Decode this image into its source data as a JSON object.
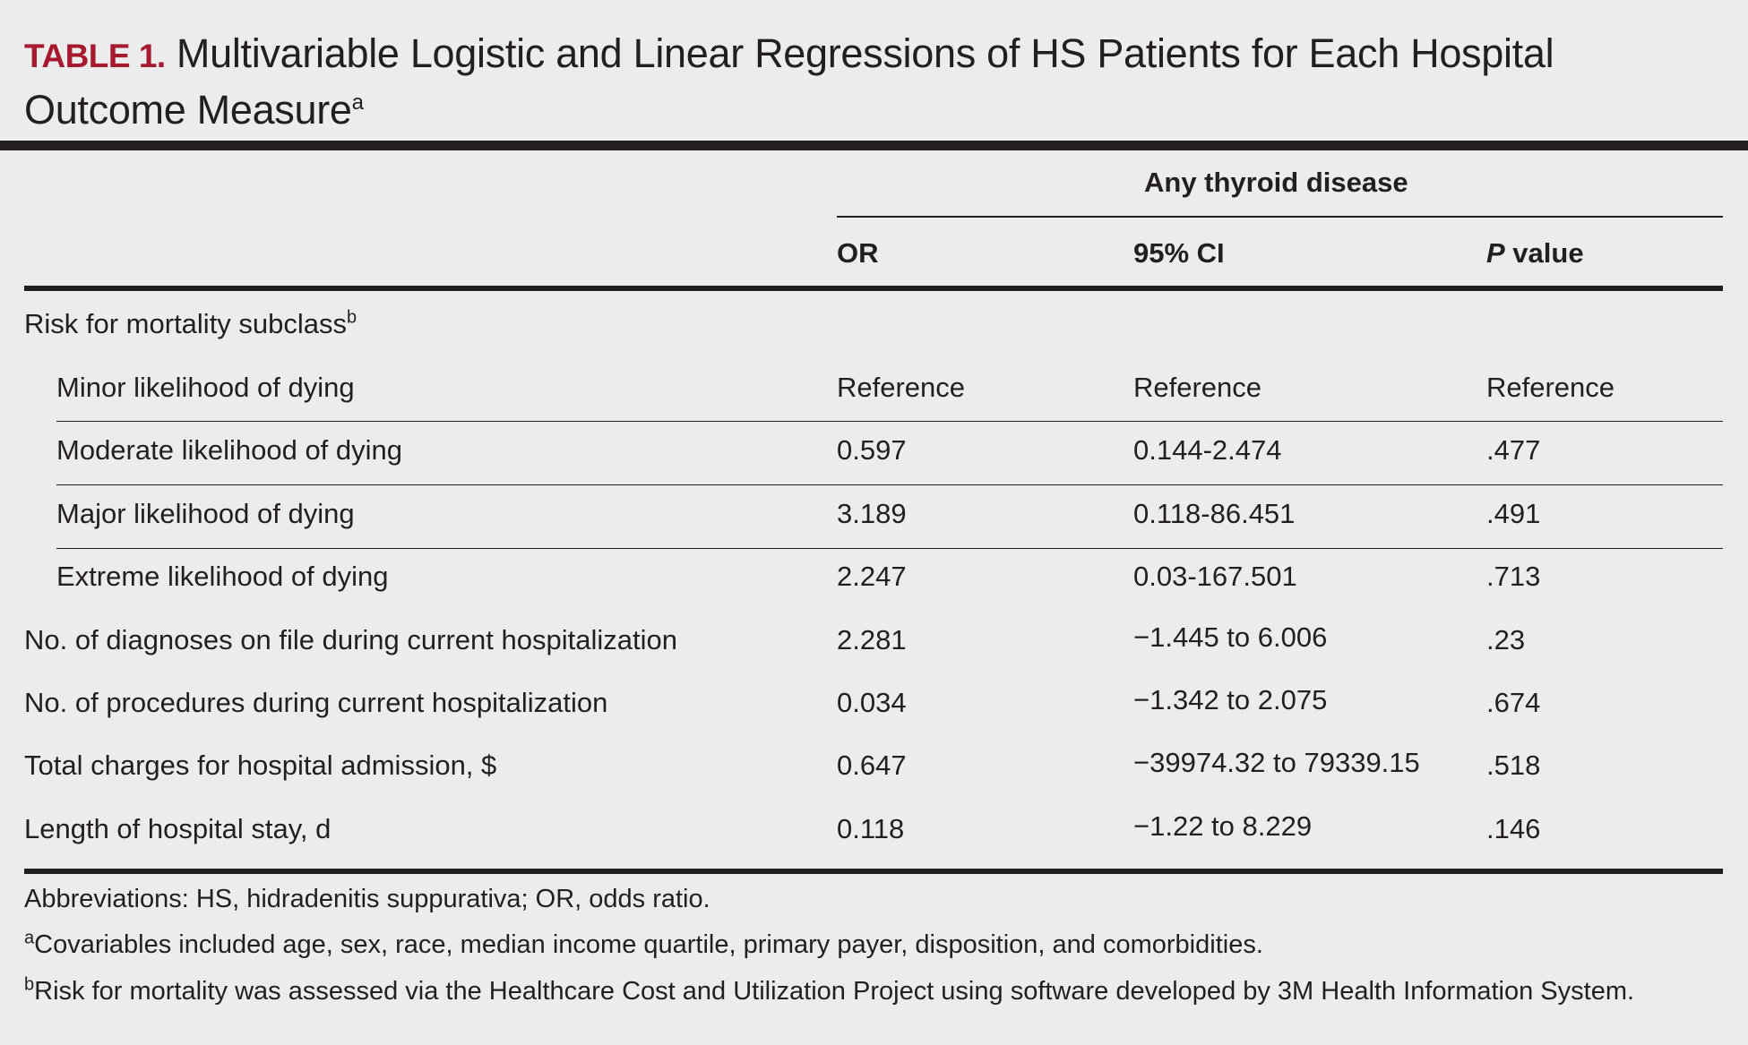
{
  "title": {
    "label": "TABLE 1.",
    "line1": "Multivariable Logistic and Linear Regressions of HS Patients for Each Hospital",
    "line2": "Outcome Measure",
    "superscript": "a"
  },
  "header": {
    "group": "Any thyroid disease",
    "columns": {
      "or": "OR",
      "ci": "95% CI",
      "p_italic": "P",
      "p_rest": " value"
    }
  },
  "section": {
    "label": "Risk for mortality subclass",
    "superscript": "b"
  },
  "rows": [
    {
      "label": "Minor likelihood of dying",
      "or": "Reference",
      "ci": "Reference",
      "p": "Reference"
    },
    {
      "label": "Moderate likelihood of dying",
      "or": "0.597",
      "ci": "0.144-2.474",
      "p": ".477"
    },
    {
      "label": "Major likelihood of dying",
      "or": "3.189",
      "ci": "0.118-86.451",
      "p": ".491"
    },
    {
      "label": "Extreme likelihood of dying",
      "or": "2.247",
      "ci": "0.03-167.501",
      "p": ".713"
    },
    {
      "label": "No. of diagnoses on file during current hospitalization",
      "or": "2.281",
      "ci": "−1.445 to 6.006",
      "p": ".23"
    },
    {
      "label": "No. of procedures during current hospitalization",
      "or": "0.034",
      "ci": "−1.342 to 2.075",
      "p": ".674"
    },
    {
      "label": "Total charges for hospital admission, $",
      "or": "0.647",
      "ci": "−39974.32 to 79339.15",
      "p": ".518"
    },
    {
      "label": "Length of hospital stay, d",
      "or": "0.118",
      "ci": "−1.22 to 8.229",
      "p": ".146"
    }
  ],
  "footnotes": {
    "abbreviations": "Abbreviations: HS, hidradenitis suppurativa; OR, odds ratio.",
    "a_mark": "a",
    "a_text": "Covariables included age, sex, race, median income quartile, primary payer, disposition, and comorbidities.",
    "b_mark": "b",
    "b_text": "Risk for mortality was assessed via the Healthcare Cost and Utilization Project using software developed by 3M Health Information System."
  }
}
